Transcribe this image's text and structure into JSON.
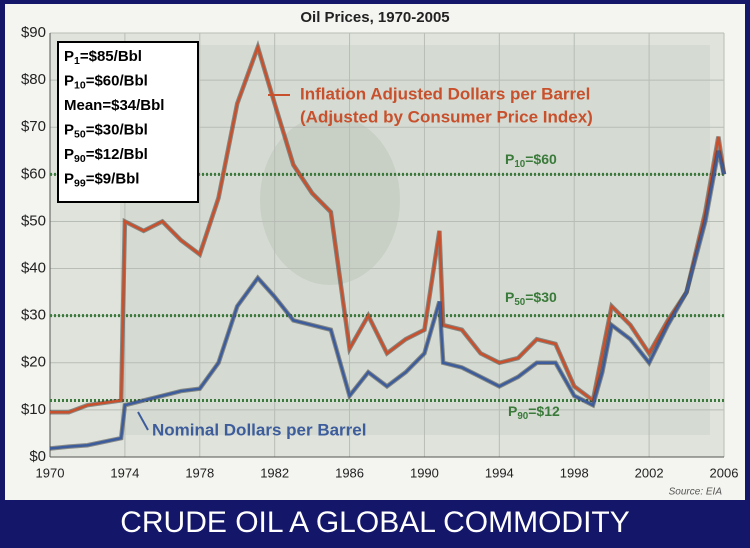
{
  "chart_data": {
    "type": "line",
    "title": "Oil Prices, 1970-2005",
    "banner": "CRUDE OIL A GLOBAL COMMODITY",
    "source": "Source: EIA",
    "xlim": [
      1970,
      2006
    ],
    "xticks": [
      1970,
      1974,
      1978,
      1982,
      1986,
      1990,
      1994,
      1998,
      2002,
      2006
    ],
    "ylim": [
      0,
      90
    ],
    "yticks": [
      {
        "value": 0,
        "label": "$0"
      },
      {
        "value": 10,
        "label": "$10"
      },
      {
        "value": 20,
        "label": "$20"
      },
      {
        "value": 30,
        "label": "$30"
      },
      {
        "value": 40,
        "label": "$40"
      },
      {
        "value": 50,
        "label": "$50"
      },
      {
        "value": 60,
        "label": "$60"
      },
      {
        "value": 70,
        "label": "$70"
      },
      {
        "value": 80,
        "label": "$80"
      },
      {
        "value": 90,
        "label": "$90"
      }
    ],
    "grid": true,
    "series": [
      {
        "name": "Inflation Adjusted Dollars per Barrel",
        "note": "(Adjusted by Consumer Price Index)",
        "color": "#c8502c",
        "x": [
          1970,
          1971,
          1972,
          1973.8,
          1974,
          1975,
          1976,
          1977,
          1978,
          1979,
          1980,
          1981.1,
          1982,
          1983,
          1984,
          1985,
          1986,
          1987,
          1988,
          1989,
          1990,
          1990.8,
          1991,
          1992,
          1993,
          1994,
          1995,
          1996,
          1997,
          1998,
          1999,
          1999.5,
          2000,
          2001,
          2002,
          2003,
          2004,
          2005,
          2005.7,
          2006
        ],
        "values": [
          9.5,
          9.5,
          11,
          12,
          50,
          48,
          50,
          46,
          43,
          55,
          75,
          87,
          75,
          62,
          56,
          52,
          23,
          30,
          22,
          25,
          27,
          48,
          28,
          27,
          22,
          20,
          21,
          25,
          24,
          15,
          12,
          22,
          32,
          28,
          22,
          29,
          35,
          52,
          68,
          60
        ]
      },
      {
        "name": "Nominal Dollars per Barrel",
        "color": "#3d5c9c",
        "x": [
          1970,
          1971,
          1972,
          1973.8,
          1974,
          1975,
          1976,
          1977,
          1978,
          1979,
          1980,
          1981.1,
          1982,
          1983,
          1984,
          1985,
          1986,
          1987,
          1988,
          1989,
          1990,
          1990.8,
          1991,
          1992,
          1993,
          1994,
          1995,
          1996,
          1997,
          1998,
          1999,
          1999.5,
          2000,
          2001,
          2002,
          2003,
          2004,
          2005,
          2005.7,
          2006
        ],
        "values": [
          1.8,
          2.2,
          2.5,
          4,
          11,
          12,
          13,
          14,
          14.5,
          20,
          32,
          38,
          34,
          29,
          28,
          27,
          13,
          18,
          15,
          18,
          22,
          33,
          20,
          19,
          17,
          15,
          17,
          20,
          20,
          13,
          11,
          18,
          28,
          25,
          20,
          28,
          35,
          50,
          65,
          60
        ]
      }
    ],
    "stats": [
      {
        "p": "P",
        "sub": "1",
        "text": "=$85/Bbl"
      },
      {
        "p": "P",
        "sub": "10",
        "text": "=$60/Bbl"
      },
      {
        "p": "Mean",
        "sub": "",
        "text": "=$34/Bbl"
      },
      {
        "p": "P",
        "sub": "50",
        "text": "=$30/Bbl"
      },
      {
        "p": "P",
        "sub": "90",
        "text": "=$12/Bbl"
      },
      {
        "p": "P",
        "sub": "99",
        "text": "=$9/Bbl"
      }
    ],
    "reference_lines": [
      {
        "value": 60,
        "p": "P",
        "sub": "10",
        "text": "=$60",
        "color": "#3a7a3a"
      },
      {
        "value": 30,
        "p": "P",
        "sub": "50",
        "text": "=$30",
        "color": "#3a7a3a"
      },
      {
        "value": 12,
        "p": "P",
        "sub": "90",
        "text": "=$12",
        "color": "#3a7a3a"
      }
    ]
  }
}
